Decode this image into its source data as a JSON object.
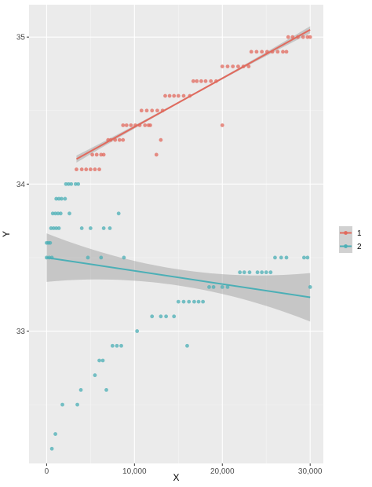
{
  "chart_data": {
    "type": "scatter",
    "title": "",
    "xlabel": "X",
    "ylabel": "Y",
    "xlim": [
      -2000,
      31500
    ],
    "ylim": [
      32.1,
      35.22
    ],
    "x_ticks": [
      0,
      10000,
      20000,
      30000
    ],
    "x_tick_labels": [
      "0",
      "10,000",
      "20,000",
      "30,000"
    ],
    "y_ticks": [
      33,
      34,
      35
    ],
    "y_tick_labels": [
      "33",
      "34",
      "35"
    ],
    "grid": true,
    "legend": {
      "position": "right",
      "entries": [
        "1",
        "2"
      ]
    },
    "series": [
      {
        "name": "1",
        "color": "#E16A5D",
        "points": [
          [
            3400,
            34.1
          ],
          [
            4000,
            34.1
          ],
          [
            4500,
            34.1
          ],
          [
            5000,
            34.1
          ],
          [
            5500,
            34.1
          ],
          [
            6000,
            34.1
          ],
          [
            5200,
            34.2
          ],
          [
            5700,
            34.2
          ],
          [
            6200,
            34.2
          ],
          [
            6500,
            34.2
          ],
          [
            7000,
            34.3
          ],
          [
            7300,
            34.3
          ],
          [
            7800,
            34.3
          ],
          [
            8300,
            34.3
          ],
          [
            8700,
            34.3
          ],
          [
            8700,
            34.4
          ],
          [
            9100,
            34.4
          ],
          [
            9600,
            34.4
          ],
          [
            10100,
            34.4
          ],
          [
            10600,
            34.4
          ],
          [
            11200,
            34.4
          ],
          [
            11800,
            34.4
          ],
          [
            10800,
            34.5
          ],
          [
            11400,
            34.5
          ],
          [
            12000,
            34.5
          ],
          [
            12600,
            34.5
          ],
          [
            13200,
            34.5
          ],
          [
            12500,
            34.2
          ],
          [
            13000,
            34.3
          ],
          [
            11600,
            34.4
          ],
          [
            13500,
            34.6
          ],
          [
            14000,
            34.6
          ],
          [
            14500,
            34.6
          ],
          [
            15000,
            34.6
          ],
          [
            15600,
            34.6
          ],
          [
            16300,
            34.6
          ],
          [
            16700,
            34.7
          ],
          [
            17100,
            34.7
          ],
          [
            17600,
            34.7
          ],
          [
            18100,
            34.7
          ],
          [
            18700,
            34.7
          ],
          [
            19300,
            34.7
          ],
          [
            20000,
            34.4
          ],
          [
            20000,
            34.8
          ],
          [
            20600,
            34.8
          ],
          [
            21200,
            34.8
          ],
          [
            21800,
            34.8
          ],
          [
            22400,
            34.8
          ],
          [
            23000,
            34.8
          ],
          [
            23300,
            34.9
          ],
          [
            23900,
            34.9
          ],
          [
            24500,
            34.9
          ],
          [
            25100,
            34.9
          ],
          [
            25700,
            34.9
          ],
          [
            26300,
            34.9
          ],
          [
            26900,
            34.9
          ],
          [
            27300,
            34.9
          ],
          [
            27500,
            35.0
          ],
          [
            28000,
            35.0
          ],
          [
            28600,
            35.0
          ],
          [
            29200,
            35.0
          ],
          [
            29700,
            35.0
          ],
          [
            30000,
            35.0
          ]
        ],
        "trend": {
          "x": [
            3400,
            30000
          ],
          "y": [
            34.17,
            35.05
          ]
        }
      },
      {
        "name": "2",
        "color": "#4BAFB6",
        "points": [
          [
            0,
            33.6
          ],
          [
            200,
            33.6
          ],
          [
            400,
            33.6
          ],
          [
            0,
            33.5
          ],
          [
            300,
            33.5
          ],
          [
            600,
            33.5
          ],
          [
            500,
            33.7
          ],
          [
            800,
            33.7
          ],
          [
            1100,
            33.7
          ],
          [
            1400,
            33.7
          ],
          [
            700,
            33.8
          ],
          [
            1000,
            33.8
          ],
          [
            1300,
            33.8
          ],
          [
            1600,
            33.8
          ],
          [
            1100,
            33.9
          ],
          [
            1400,
            33.9
          ],
          [
            1700,
            33.9
          ],
          [
            2200,
            34.0
          ],
          [
            2500,
            34.0
          ],
          [
            2800,
            34.0
          ],
          [
            3300,
            34.0
          ],
          [
            3600,
            34.0
          ],
          [
            2100,
            33.9
          ],
          [
            2600,
            33.8
          ],
          [
            4000,
            33.7
          ],
          [
            5000,
            33.7
          ],
          [
            6500,
            33.7
          ],
          [
            7200,
            33.7
          ],
          [
            8200,
            33.8
          ],
          [
            4700,
            33.5
          ],
          [
            6200,
            33.5
          ],
          [
            8800,
            33.5
          ],
          [
            600,
            32.2
          ],
          [
            1000,
            32.3
          ],
          [
            1800,
            32.5
          ],
          [
            3500,
            32.5
          ],
          [
            3900,
            32.6
          ],
          [
            5500,
            32.7
          ],
          [
            6000,
            32.8
          ],
          [
            6400,
            32.8
          ],
          [
            6800,
            32.6
          ],
          [
            7500,
            32.9
          ],
          [
            8000,
            32.9
          ],
          [
            8500,
            32.9
          ],
          [
            10300,
            33.0
          ],
          [
            12000,
            33.1
          ],
          [
            13000,
            33.1
          ],
          [
            13600,
            33.1
          ],
          [
            14500,
            33.1
          ],
          [
            15000,
            33.2
          ],
          [
            15600,
            33.2
          ],
          [
            16200,
            33.2
          ],
          [
            16800,
            33.2
          ],
          [
            17300,
            33.2
          ],
          [
            17800,
            33.2
          ],
          [
            16000,
            32.9
          ],
          [
            18500,
            33.3
          ],
          [
            19000,
            33.3
          ],
          [
            20000,
            33.3
          ],
          [
            20600,
            33.3
          ],
          [
            22000,
            33.4
          ],
          [
            22500,
            33.4
          ],
          [
            23100,
            33.4
          ],
          [
            24000,
            33.4
          ],
          [
            24500,
            33.4
          ],
          [
            25000,
            33.4
          ],
          [
            25500,
            33.4
          ],
          [
            26000,
            33.5
          ],
          [
            26700,
            33.5
          ],
          [
            27300,
            33.5
          ],
          [
            29300,
            33.5
          ],
          [
            29700,
            33.5
          ],
          [
            30000,
            33.3
          ]
        ],
        "trend": {
          "x": [
            0,
            30000
          ],
          "y": [
            33.5,
            33.23
          ]
        }
      }
    ]
  }
}
